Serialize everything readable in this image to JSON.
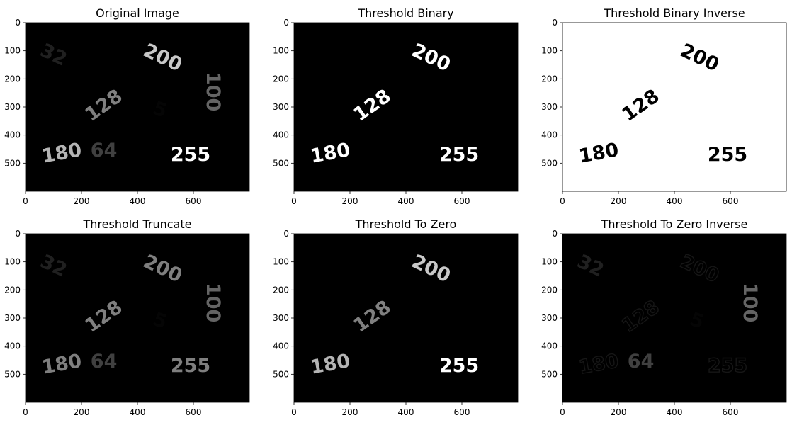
{
  "figure": {
    "background": "#ffffff"
  },
  "chart_data": [
    {
      "type": "image",
      "title": "Original Image",
      "background_level": 0,
      "xlim": [
        0,
        800
      ],
      "ylim": [
        600,
        0
      ],
      "xticks": [
        0,
        200,
        400,
        600
      ],
      "yticks": [
        0,
        100,
        200,
        300,
        400,
        500
      ],
      "xtick_labels": [
        "0",
        "200",
        "400",
        "600"
      ],
      "ytick_labels": [
        "0",
        "100",
        "200",
        "300",
        "400",
        "500"
      ],
      "labels": [
        {
          "text": "32",
          "x": 100,
          "y": 115,
          "angle": 25,
          "level": 32
        },
        {
          "text": "200",
          "x": 490,
          "y": 125,
          "angle": 25,
          "level": 200
        },
        {
          "text": "100",
          "x": 670,
          "y": 245,
          "angle": 90,
          "level": 100
        },
        {
          "text": "128",
          "x": 280,
          "y": 295,
          "angle": -35,
          "level": 128
        },
        {
          "text": "5",
          "x": 480,
          "y": 310,
          "angle": 20,
          "level": 5
        },
        {
          "text": "180",
          "x": 130,
          "y": 465,
          "angle": -10,
          "level": 180
        },
        {
          "text": "64",
          "x": 280,
          "y": 455,
          "angle": 0,
          "level": 64
        },
        {
          "text": "255",
          "x": 590,
          "y": 470,
          "angle": 0,
          "level": 255
        }
      ]
    },
    {
      "type": "image",
      "title": "Threshold Binary",
      "background_level": 0,
      "xlim": [
        0,
        800
      ],
      "ylim": [
        600,
        0
      ],
      "xticks": [
        0,
        200,
        400,
        600
      ],
      "yticks": [
        0,
        100,
        200,
        300,
        400,
        500
      ],
      "xtick_labels": [
        "0",
        "200",
        "400",
        "600"
      ],
      "ytick_labels": [
        "0",
        "100",
        "200",
        "300",
        "400",
        "500"
      ],
      "labels": [
        {
          "text": "200",
          "x": 490,
          "y": 125,
          "angle": 25,
          "level": 255
        },
        {
          "text": "128",
          "x": 280,
          "y": 295,
          "angle": -35,
          "level": 255
        },
        {
          "text": "180",
          "x": 130,
          "y": 465,
          "angle": -10,
          "level": 255
        },
        {
          "text": "255",
          "x": 590,
          "y": 470,
          "angle": 0,
          "level": 255
        }
      ]
    },
    {
      "type": "image",
      "title": "Threshold Binary Inverse",
      "background_level": 255,
      "xlim": [
        0,
        800
      ],
      "ylim": [
        600,
        0
      ],
      "xticks": [
        0,
        200,
        400,
        600
      ],
      "yticks": [
        0,
        100,
        200,
        300,
        400,
        500
      ],
      "xtick_labels": [
        "0",
        "200",
        "400",
        "600"
      ],
      "ytick_labels": [
        "0",
        "100",
        "200",
        "300",
        "400",
        "500"
      ],
      "labels": [
        {
          "text": "200",
          "x": 490,
          "y": 125,
          "angle": 25,
          "level": 0
        },
        {
          "text": "128",
          "x": 280,
          "y": 295,
          "angle": -35,
          "level": 0
        },
        {
          "text": "180",
          "x": 130,
          "y": 465,
          "angle": -10,
          "level": 0
        },
        {
          "text": "255",
          "x": 590,
          "y": 470,
          "angle": 0,
          "level": 0
        }
      ]
    },
    {
      "type": "image",
      "title": "Threshold Truncate",
      "background_level": 0,
      "xlim": [
        0,
        800
      ],
      "ylim": [
        600,
        0
      ],
      "xticks": [
        0,
        200,
        400,
        600
      ],
      "yticks": [
        0,
        100,
        200,
        300,
        400,
        500
      ],
      "xtick_labels": [
        "0",
        "200",
        "400",
        "600"
      ],
      "ytick_labels": [
        "0",
        "100",
        "200",
        "300",
        "400",
        "500"
      ],
      "labels": [
        {
          "text": "32",
          "x": 100,
          "y": 115,
          "angle": 25,
          "level": 32
        },
        {
          "text": "200",
          "x": 490,
          "y": 125,
          "angle": 25,
          "level": 127
        },
        {
          "text": "100",
          "x": 670,
          "y": 245,
          "angle": 90,
          "level": 100
        },
        {
          "text": "128",
          "x": 280,
          "y": 295,
          "angle": -35,
          "level": 127
        },
        {
          "text": "5",
          "x": 480,
          "y": 310,
          "angle": 20,
          "level": 5
        },
        {
          "text": "180",
          "x": 130,
          "y": 465,
          "angle": -10,
          "level": 127
        },
        {
          "text": "64",
          "x": 280,
          "y": 455,
          "angle": 0,
          "level": 64
        },
        {
          "text": "255",
          "x": 590,
          "y": 470,
          "angle": 0,
          "level": 127
        }
      ]
    },
    {
      "type": "image",
      "title": "Threshold To Zero",
      "background_level": 0,
      "xlim": [
        0,
        800
      ],
      "ylim": [
        600,
        0
      ],
      "xticks": [
        0,
        200,
        400,
        600
      ],
      "yticks": [
        0,
        100,
        200,
        300,
        400,
        500
      ],
      "xtick_labels": [
        "0",
        "200",
        "400",
        "600"
      ],
      "ytick_labels": [
        "0",
        "100",
        "200",
        "300",
        "400",
        "500"
      ],
      "labels": [
        {
          "text": "200",
          "x": 490,
          "y": 125,
          "angle": 25,
          "level": 200
        },
        {
          "text": "128",
          "x": 280,
          "y": 295,
          "angle": -35,
          "level": 128
        },
        {
          "text": "180",
          "x": 130,
          "y": 465,
          "angle": -10,
          "level": 180
        },
        {
          "text": "255",
          "x": 590,
          "y": 470,
          "angle": 0,
          "level": 255
        }
      ]
    },
    {
      "type": "image",
      "title": "Threshold To Zero Inverse",
      "background_level": 0,
      "xlim": [
        0,
        800
      ],
      "ylim": [
        600,
        0
      ],
      "xticks": [
        0,
        200,
        400,
        600
      ],
      "yticks": [
        0,
        100,
        200,
        300,
        400,
        500
      ],
      "xtick_labels": [
        "0",
        "200",
        "400",
        "600"
      ],
      "ytick_labels": [
        "0",
        "100",
        "200",
        "300",
        "400",
        "500"
      ],
      "labels": [
        {
          "text": "32",
          "x": 100,
          "y": 115,
          "angle": 25,
          "level": 32
        },
        {
          "text": "200",
          "x": 490,
          "y": 125,
          "angle": 25,
          "level": 0,
          "outline_level": 22
        },
        {
          "text": "100",
          "x": 670,
          "y": 245,
          "angle": 90,
          "level": 100
        },
        {
          "text": "128",
          "x": 280,
          "y": 295,
          "angle": -35,
          "level": 0,
          "outline_level": 22
        },
        {
          "text": "5",
          "x": 480,
          "y": 310,
          "angle": 20,
          "level": 5
        },
        {
          "text": "180",
          "x": 130,
          "y": 465,
          "angle": -10,
          "level": 0,
          "outline_level": 22
        },
        {
          "text": "64",
          "x": 280,
          "y": 455,
          "angle": 0,
          "level": 64
        },
        {
          "text": "255",
          "x": 590,
          "y": 470,
          "angle": 0,
          "level": 0,
          "outline_level": 22
        }
      ]
    }
  ]
}
